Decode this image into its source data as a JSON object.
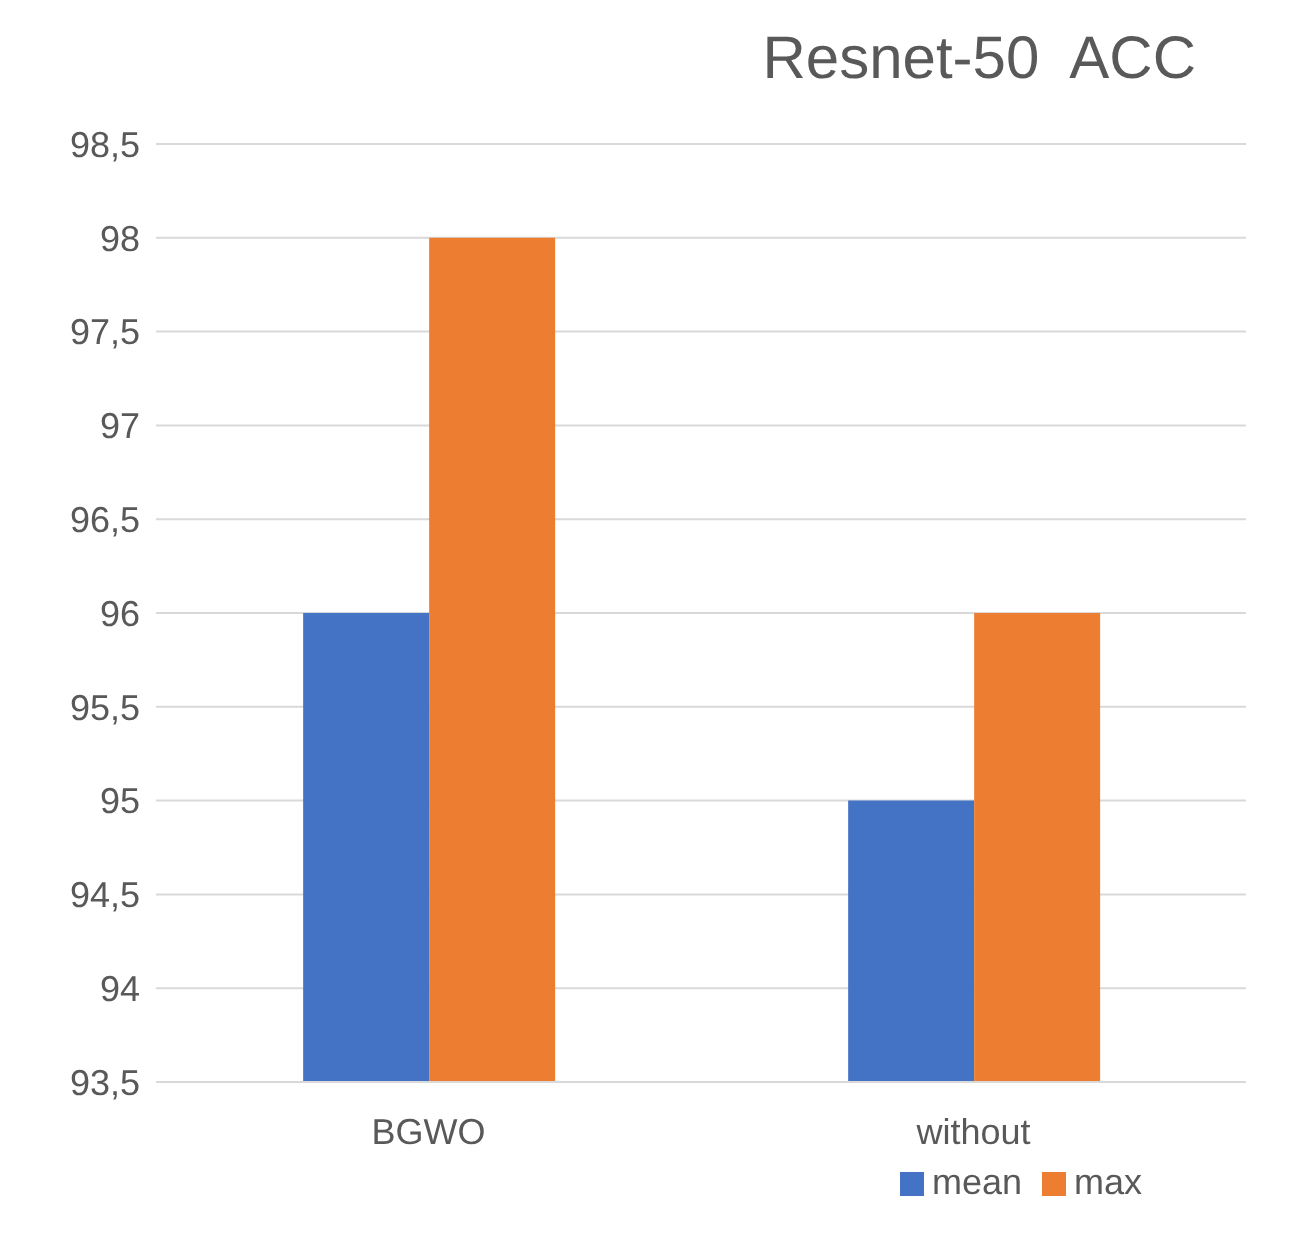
{
  "chart_data": {
    "type": "bar",
    "title": "Resnet-50  ACC",
    "categories": [
      "BGWO",
      "without"
    ],
    "series": [
      {
        "name": "mean",
        "color": "#4472c4",
        "values": [
          96,
          95
        ]
      },
      {
        "name": "max",
        "color": "#ed7d31",
        "values": [
          98,
          96
        ]
      }
    ],
    "ylim": [
      93.5,
      98.5
    ],
    "yticks": [
      {
        "value": 93.5,
        "label": "93,5"
      },
      94,
      {
        "value": 94.5,
        "label": "94,5"
      },
      95,
      {
        "value": 95.5,
        "label": "95,5"
      },
      96,
      {
        "value": 96.5,
        "label": "96,5"
      },
      97,
      {
        "value": 97.5,
        "label": "97,5"
      },
      98,
      {
        "value": 98.5,
        "label": "98,5"
      }
    ],
    "grid": "y",
    "legend": "bottom"
  }
}
